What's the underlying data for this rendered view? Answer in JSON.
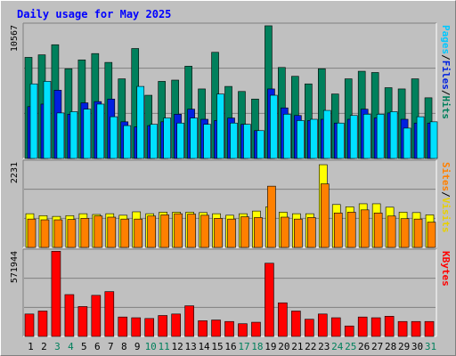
{
  "chart_data": {
    "type": "bar",
    "title": "Daily usage for May 2025",
    "categories": [
      "1",
      "2",
      "3",
      "4",
      "5",
      "6",
      "7",
      "8",
      "9",
      "10",
      "11",
      "12",
      "13",
      "14",
      "15",
      "16",
      "17",
      "18",
      "19",
      "20",
      "21",
      "22",
      "23",
      "24",
      "25",
      "26",
      "27",
      "28",
      "29",
      "30",
      "31"
    ],
    "weekend_days": [
      "3",
      "4",
      "10",
      "11",
      "17",
      "18",
      "24",
      "25",
      "31"
    ],
    "panels": [
      {
        "id": "top",
        "ymax": 10567,
        "ymax_label": "10567",
        "legend": [
          "Pages",
          "/",
          "Files",
          "/",
          "Hits"
        ],
        "series": [
          {
            "name": "Hits",
            "color": "#00805c",
            "values": [
              8000,
              8200,
              9000,
              7100,
              7800,
              8300,
              7600,
              6300,
              8700,
              5000,
              6100,
              6200,
              7300,
              5500,
              8400,
              5700,
              5300,
              4700,
              10500,
              7200,
              6500,
              5900,
              7100,
              5100,
              6300,
              6900,
              6800,
              5600,
              5500,
              6300,
              4800
            ]
          },
          {
            "name": "Files",
            "color": "#0020e0",
            "values": [
              4100,
              4300,
              5400,
              3500,
              4400,
              4500,
              4700,
              2900,
              2500,
              2600,
              2900,
              3500,
              3900,
              3100,
              3000,
              3200,
              2700,
              2200,
              5500,
              4000,
              3400,
              3000,
              3100,
              2800,
              3100,
              3900,
              3200,
              3600,
              3100,
              2800,
              2800
            ]
          },
          {
            "name": "Pages",
            "color": "#00e0ff",
            "values": [
              5900,
              6100,
              3600,
              3700,
              3900,
              4300,
              3300,
              2600,
              5700,
              2700,
              3200,
              2800,
              3200,
              2700,
              5100,
              2800,
              2700,
              2200,
              5000,
              3500,
              3000,
              3100,
              3800,
              2800,
              3400,
              3500,
              3500,
              3700,
              2400,
              3300,
              2900
            ]
          }
        ]
      },
      {
        "id": "middle",
        "ymax": 2231,
        "ymax_label": "2231",
        "legend": [
          "Sites",
          "/",
          "Visits"
        ],
        "series": [
          {
            "name": "Visits",
            "color": "#ffff00",
            "values": [
              880,
              830,
              810,
              830,
              880,
              860,
              880,
              840,
              930,
              880,
              920,
              920,
              920,
              910,
              880,
              840,
              880,
              950,
              1060,
              920,
              880,
              880,
              2160,
              1120,
              1060,
              1140,
              1140,
              1050,
              920,
              910,
              850
            ]
          },
          {
            "name": "Sites",
            "color": "#ff8000",
            "values": [
              740,
              720,
              720,
              730,
              760,
              820,
              790,
              740,
              740,
              820,
              850,
              880,
              870,
              840,
              760,
              740,
              800,
              780,
              1600,
              790,
              740,
              780,
              1660,
              900,
              920,
              980,
              900,
              820,
              750,
              740,
              660
            ]
          }
        ]
      },
      {
        "id": "bottom",
        "ymax": 571944,
        "ymax_label": "571944",
        "legend": [
          "KBytes"
        ],
        "series": [
          {
            "name": "KBytes",
            "color": "#ff0000",
            "values": [
              150000,
              170000,
              570000,
              280000,
              200000,
              275000,
              300000,
              130000,
              125000,
              120000,
              140000,
              150000,
              205000,
              105000,
              110000,
              100000,
              85000,
              95000,
              490000,
              225000,
              170000,
              115000,
              150000,
              125000,
              70000,
              130000,
              125000,
              135000,
              100000,
              100000,
              100000
            ]
          }
        ]
      }
    ]
  }
}
